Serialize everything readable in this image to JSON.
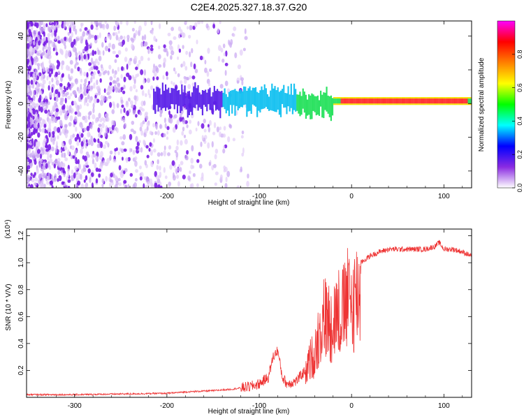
{
  "chart_data": [
    {
      "type": "heatmap",
      "title": "C2E4.2025.327.18.37.G20",
      "xlabel": "Height of straight line (km)",
      "ylabel": "Frequency (Hz)",
      "xlim": [
        -352,
        130
      ],
      "ylim": [
        -50,
        49
      ],
      "xticks": [
        -300,
        -200,
        -100,
        0,
        100
      ],
      "yticks": [
        -40,
        -20,
        0,
        20,
        40
      ],
      "xtick_labels": [
        "-300",
        "-200",
        "-100",
        "0",
        "100"
      ],
      "ytick_labels": [
        "-40",
        "-20",
        "0",
        "20",
        "40"
      ],
      "colorbar": {
        "label": "Normalized spectral amplitude",
        "range": [
          0,
          1
        ],
        "ticks": [
          0.0,
          0.2,
          0.4,
          0.6,
          0.8
        ],
        "tick_labels": [
          "0.0",
          "0.2",
          "0.4",
          "0.6",
          "0.8"
        ],
        "colors": [
          "#ffffff",
          "#8a2be2",
          "#0000ff",
          "#00ffff",
          "#00ff00",
          "#ffff00",
          "#ff8000",
          "#ff0000",
          "#ff00ff"
        ]
      },
      "description_points": [
        {
          "x": -330,
          "level": 0.25
        },
        {
          "x": -200,
          "level": 0.3
        },
        {
          "x": -120,
          "level": 0.5
        },
        {
          "x": -60,
          "level": 0.6
        },
        {
          "x": 0,
          "level": 0.85
        },
        {
          "x": 50,
          "level": 0.9
        },
        {
          "x": 90,
          "level": 0.85
        },
        {
          "x": 125,
          "level": 0.8
        }
      ]
    },
    {
      "type": "line",
      "title": "",
      "xlabel": "Height of straight line (km)",
      "ylabel": "SNR (10 * V/V)",
      "y_multiplier": "(x10⁴)",
      "xlim": [
        -352,
        130
      ],
      "ylim": [
        0,
        1.25
      ],
      "xticks": [
        -300,
        -200,
        -100,
        0,
        100
      ],
      "yticks": [
        0.2,
        0.4,
        0.6,
        0.8,
        1.0,
        1.2
      ],
      "xtick_labels": [
        "-300",
        "-200",
        "-100",
        "0",
        "100"
      ],
      "ytick_labels": [
        "0.2",
        "0.4",
        "0.6",
        "0.8",
        "1.0",
        "1.2"
      ],
      "series": [
        {
          "name": "SNR",
          "color": "#ee3333",
          "x": [
            -352,
            -300,
            -250,
            -200,
            -180,
            -150,
            -130,
            -110,
            -100,
            -90,
            -85,
            -80,
            -75,
            -70,
            -60,
            -50,
            -45,
            -40,
            -35,
            -30,
            -25,
            -20,
            -15,
            -10,
            -5,
            0,
            5,
            10,
            20,
            30,
            40,
            60,
            80,
            90,
            95,
            100,
            110,
            120,
            130
          ],
          "values": [
            0.02,
            0.02,
            0.025,
            0.03,
            0.04,
            0.05,
            0.06,
            0.08,
            0.1,
            0.15,
            0.3,
            0.35,
            0.15,
            0.1,
            0.12,
            0.2,
            0.35,
            0.4,
            0.6,
            0.75,
            0.7,
            0.72,
            0.8,
            0.78,
            0.9,
            0.85,
            0.95,
            1.0,
            1.05,
            1.08,
            1.1,
            1.1,
            1.1,
            1.12,
            1.15,
            1.1,
            1.1,
            1.08,
            1.05
          ]
        }
      ]
    }
  ]
}
